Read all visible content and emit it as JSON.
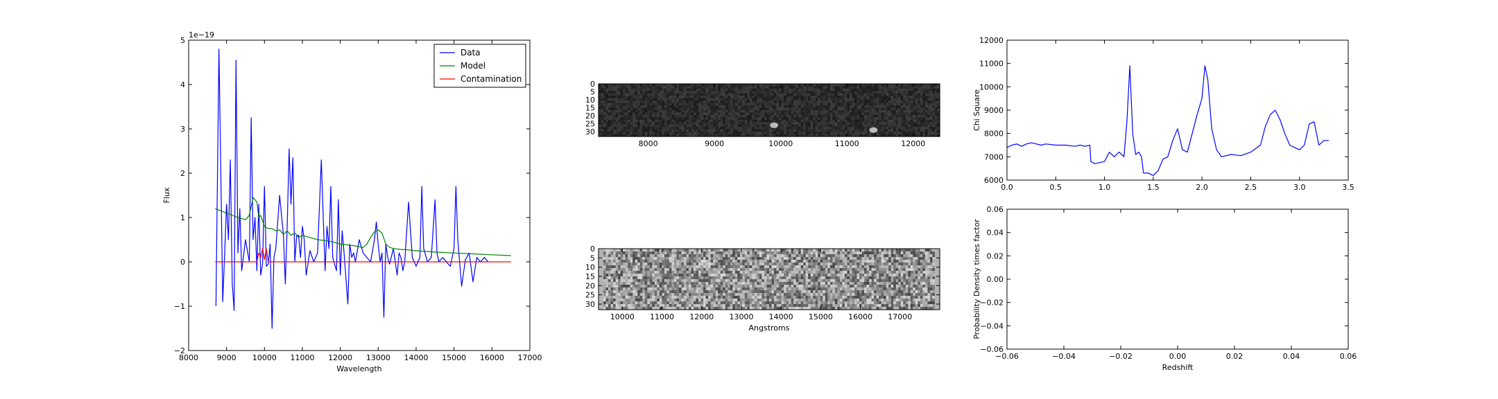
{
  "figure": {
    "background": "#ffffff"
  },
  "chart_data": [
    {
      "type": "line",
      "id": "spectrum",
      "xlabel": "Wavelength",
      "ylabel": "Flux",
      "offset_text": "1e−19",
      "xlim": [
        8000,
        17000
      ],
      "ylim": [
        -2,
        5
      ],
      "xticks": [
        8000,
        9000,
        10000,
        11000,
        12000,
        13000,
        14000,
        15000,
        16000,
        17000
      ],
      "yticks": [
        -2,
        -1,
        0,
        1,
        2,
        3,
        4,
        5
      ],
      "legend": {
        "placement": "top-right",
        "entries": [
          "Data",
          "Model",
          "Contamination"
        ]
      },
      "series": [
        {
          "name": "Data",
          "color": "#0000ff",
          "x": [
            8720,
            8800,
            8900,
            9000,
            9050,
            9100,
            9150,
            9200,
            9250,
            9300,
            9350,
            9400,
            9500,
            9600,
            9650,
            9700,
            9750,
            9800,
            9850,
            9900,
            9950,
            10000,
            10050,
            10100,
            10150,
            10200,
            10250,
            10300,
            10400,
            10500,
            10550,
            10600,
            10650,
            10700,
            10750,
            10800,
            10850,
            10900,
            10950,
            11000,
            11050,
            11100,
            11200,
            11300,
            11400,
            11500,
            11550,
            11600,
            11650,
            11700,
            11750,
            11800,
            11900,
            11950,
            12000,
            12050,
            12100,
            12200,
            12250,
            12300,
            12350,
            12400,
            12500,
            12600,
            12700,
            12800,
            12900,
            12950,
            13000,
            13050,
            13100,
            13150,
            13200,
            13250,
            13300,
            13400,
            13500,
            13550,
            13600,
            13650,
            13700,
            13800,
            13900,
            14000,
            14050,
            14100,
            14150,
            14200,
            14300,
            14400,
            14500,
            14550,
            14600,
            14700,
            14800,
            14900,
            15000,
            15050,
            15100,
            15200,
            15300,
            15400,
            15500,
            15600,
            15700,
            15800,
            15900
          ],
          "y": [
            -1.0,
            4.8,
            -0.9,
            1.3,
            0.5,
            2.3,
            -0.5,
            -1.1,
            4.55,
            0.2,
            1.2,
            -0.2,
            0.5,
            0.0,
            3.25,
            0.5,
            1.0,
            -0.2,
            1.3,
            -0.3,
            -0.05,
            1.7,
            -0.1,
            -0.05,
            0.4,
            -1.5,
            0.1,
            0.3,
            1.5,
            0.6,
            -0.5,
            0.8,
            2.55,
            1.3,
            2.35,
            0.0,
            0.6,
            0.6,
            0.1,
            0.8,
            0.5,
            -0.3,
            0.25,
            0.0,
            0.2,
            2.3,
            1.0,
            -0.2,
            0.8,
            0.3,
            1.7,
            0.1,
            -0.2,
            1.4,
            -0.3,
            0.7,
            0.2,
            -0.95,
            0.4,
            0.1,
            0.2,
            0.0,
            0.5,
            0.2,
            0.1,
            0.0,
            0.5,
            0.9,
            0.4,
            0.0,
            0.2,
            -1.25,
            0.4,
            0.1,
            -0.05,
            0.3,
            -0.3,
            0.2,
            0.1,
            -0.2,
            0.0,
            1.35,
            0.1,
            -0.1,
            0.0,
            0.1,
            1.7,
            0.3,
            0.0,
            0.1,
            1.4,
            0.2,
            0.0,
            0.1,
            0.0,
            -0.1,
            0.3,
            1.7,
            0.5,
            -0.55,
            0.05,
            0.2,
            -0.45,
            0.1,
            0.0,
            0.1,
            0.0
          ]
        },
        {
          "name": "Model",
          "color": "#008000",
          "x": [
            8700,
            9000,
            9300,
            9500,
            9600,
            9700,
            9800,
            9850,
            9900,
            10000,
            10100,
            10200,
            10300,
            10400,
            10500,
            10600,
            10700,
            10800,
            10900,
            11000,
            11200,
            11400,
            11600,
            11800,
            12000,
            12200,
            12400,
            12600,
            12700,
            12800,
            12900,
            13000,
            13100,
            13200,
            13300,
            13400,
            13600,
            13800,
            14000,
            14500,
            15000,
            15500,
            16000,
            16500
          ],
          "y": [
            1.2,
            1.1,
            1.0,
            0.95,
            1.05,
            1.45,
            1.35,
            1.0,
            1.05,
            0.8,
            0.75,
            0.75,
            0.7,
            0.72,
            0.62,
            0.7,
            0.6,
            0.65,
            0.55,
            0.6,
            0.55,
            0.5,
            0.48,
            0.45,
            0.4,
            0.38,
            0.36,
            0.32,
            0.4,
            0.55,
            0.68,
            0.72,
            0.65,
            0.4,
            0.33,
            0.3,
            0.28,
            0.27,
            0.25,
            0.22,
            0.2,
            0.18,
            0.16,
            0.14
          ]
        },
        {
          "name": "Contamination",
          "color": "#ff0000",
          "x": [
            8700,
            9800,
            9850,
            9900,
            9950,
            10000,
            10050,
            10100,
            10150,
            10200,
            16500
          ],
          "y": [
            0.0,
            0.0,
            0.2,
            0.1,
            0.3,
            0.05,
            0.3,
            0.0,
            0.0,
            0.0,
            0.0
          ]
        }
      ]
    },
    {
      "type": "heatmap",
      "id": "spectrum-2d",
      "xlim": [
        7250,
        12400
      ],
      "ylim": [
        0,
        33
      ],
      "xticks": [
        8000,
        9000,
        10000,
        11000,
        12000
      ],
      "yticks": [
        0,
        5,
        10,
        15,
        20,
        25,
        30
      ],
      "colormap": "gray",
      "range": [
        0.1,
        0.25
      ],
      "bright_spots": [
        {
          "x": 9900,
          "y": 26
        },
        {
          "x": 11400,
          "y": 29
        }
      ]
    },
    {
      "type": "heatmap",
      "id": "residual-2d",
      "xlabel": "Angstroms",
      "xlim": [
        9400,
        18000
      ],
      "ylim": [
        0,
        33
      ],
      "xticks": [
        10000,
        11000,
        12000,
        13000,
        14000,
        15000,
        16000,
        17000
      ],
      "yticks": [
        0,
        5,
        10,
        15,
        20,
        25,
        30
      ],
      "colormap": "gray",
      "range": [
        0.28,
        0.85
      ]
    },
    {
      "type": "line",
      "id": "chi-square",
      "ylabel": "Chi Square",
      "xlim": [
        0.0,
        3.5
      ],
      "ylim": [
        6000,
        12000
      ],
      "xticks": [
        0.0,
        0.5,
        1.0,
        1.5,
        2.0,
        2.5,
        3.0,
        3.5
      ],
      "yticks": [
        6000,
        7000,
        8000,
        9000,
        10000,
        11000,
        12000
      ],
      "series": [
        {
          "color": "#0000ff",
          "x": [
            0.0,
            0.05,
            0.1,
            0.15,
            0.2,
            0.25,
            0.3,
            0.35,
            0.4,
            0.5,
            0.6,
            0.7,
            0.75,
            0.8,
            0.85,
            0.86,
            0.9,
            1.0,
            1.05,
            1.1,
            1.15,
            1.2,
            1.23,
            1.26,
            1.29,
            1.32,
            1.35,
            1.38,
            1.4,
            1.45,
            1.5,
            1.55,
            1.6,
            1.65,
            1.7,
            1.75,
            1.8,
            1.85,
            1.9,
            1.95,
            2.0,
            2.03,
            2.06,
            2.1,
            2.15,
            2.2,
            2.3,
            2.4,
            2.5,
            2.6,
            2.65,
            2.7,
            2.75,
            2.8,
            2.85,
            2.9,
            2.95,
            3.0,
            3.05,
            3.1,
            3.15,
            3.2,
            3.25,
            3.3
          ],
          "y": [
            7400,
            7500,
            7550,
            7450,
            7550,
            7600,
            7550,
            7500,
            7550,
            7500,
            7500,
            7450,
            7500,
            7450,
            7500,
            6800,
            6700,
            6800,
            7200,
            7000,
            7200,
            7000,
            8500,
            10900,
            8000,
            7100,
            7200,
            7000,
            6300,
            6300,
            6200,
            6400,
            6900,
            7000,
            7700,
            8200,
            7300,
            7200,
            8000,
            8800,
            9500,
            10900,
            10300,
            8200,
            7300,
            7000,
            7100,
            7050,
            7200,
            7500,
            8300,
            8800,
            9000,
            8600,
            8000,
            7500,
            7400,
            7300,
            7500,
            8400,
            8500,
            7500,
            7700,
            7700
          ]
        }
      ]
    },
    {
      "type": "line",
      "id": "probability",
      "xlabel": "Redshift",
      "ylabel": "Probability Density times factor",
      "xlim": [
        -0.06,
        0.06
      ],
      "ylim": [
        -0.06,
        0.06
      ],
      "xticks": [
        -0.06,
        -0.04,
        -0.02,
        0.0,
        0.02,
        0.04,
        0.06
      ],
      "yticks": [
        -0.06,
        -0.04,
        -0.02,
        0.0,
        0.02,
        0.04,
        0.06
      ],
      "series": []
    }
  ]
}
